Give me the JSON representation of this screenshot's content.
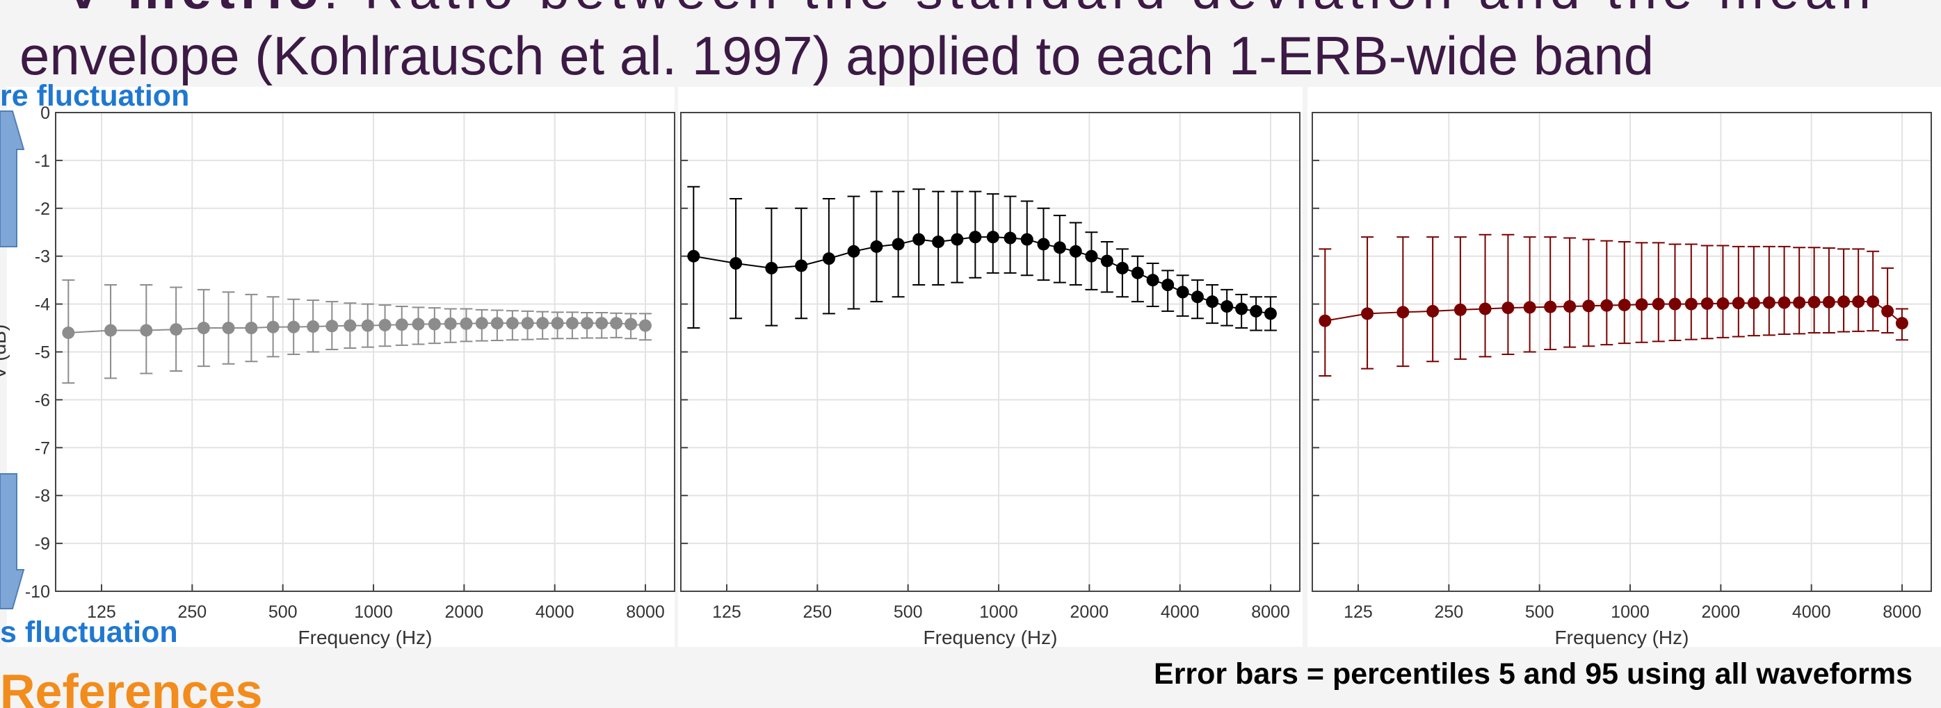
{
  "slide": {
    "bullet": "-",
    "bullet_term": "V metric",
    "bullet_text": ": Ratio between the standard deviation and the mean",
    "line2": "envelope (Kohlrausch et al. 1997) applied to each 1-ERB-wide band",
    "more": "re fluctuation",
    "less": "s fluctuation",
    "references": "References",
    "note": "Error bars = percentiles 5 and 95 using all waveforms"
  },
  "chart_data": [
    {
      "type": "line",
      "xscale": "log",
      "grid": true,
      "color": "#8c8c8c",
      "show_ytick_labels": true,
      "ylabel": "V (dB)",
      "xlabel": "Frequency (Hz)",
      "xlim": [
        88,
        10000
      ],
      "ylim": [
        -10,
        0
      ],
      "xticks": [
        125,
        250,
        500,
        1000,
        2000,
        4000,
        8000
      ],
      "yticks": [
        0,
        -1,
        -2,
        -3,
        -4,
        -5,
        -6,
        -7,
        -8,
        -9,
        -10
      ],
      "x": [
        97,
        134,
        176,
        221,
        273,
        330,
        393,
        464,
        543,
        630,
        728,
        836,
        957,
        1092,
        1242,
        1409,
        1595,
        1802,
        2033,
        2290,
        2575,
        2894,
        3249,
        3644,
        4084,
        4574,
        5119,
        5727,
        6403,
        7157,
        7995
      ],
      "values": [
        -4.6,
        -4.55,
        -4.55,
        -4.53,
        -4.5,
        -4.5,
        -4.5,
        -4.48,
        -4.48,
        -4.47,
        -4.46,
        -4.45,
        -4.45,
        -4.44,
        -4.43,
        -4.42,
        -4.42,
        -4.41,
        -4.41,
        -4.4,
        -4.4,
        -4.4,
        -4.4,
        -4.4,
        -4.4,
        -4.4,
        -4.4,
        -4.4,
        -4.4,
        -4.42,
        -4.45
      ],
      "upper": [
        -3.5,
        -3.6,
        -3.6,
        -3.65,
        -3.7,
        -3.75,
        -3.8,
        -3.85,
        -3.9,
        -3.92,
        -3.95,
        -3.98,
        -4.0,
        -4.02,
        -4.05,
        -4.07,
        -4.08,
        -4.1,
        -4.1,
        -4.12,
        -4.13,
        -4.14,
        -4.15,
        -4.16,
        -4.17,
        -4.17,
        -4.18,
        -4.18,
        -4.19,
        -4.2,
        -4.2
      ],
      "lower": [
        -5.65,
        -5.55,
        -5.45,
        -5.4,
        -5.3,
        -5.25,
        -5.2,
        -5.1,
        -5.05,
        -5.0,
        -4.95,
        -4.92,
        -4.9,
        -4.88,
        -4.86,
        -4.84,
        -4.82,
        -4.8,
        -4.78,
        -4.77,
        -4.76,
        -4.75,
        -4.74,
        -4.73,
        -4.72,
        -4.72,
        -4.71,
        -4.71,
        -4.7,
        -4.72,
        -4.75
      ]
    },
    {
      "type": "line",
      "xscale": "log",
      "grid": true,
      "color": "#000000",
      "show_ytick_labels": false,
      "xlabel": "Frequency (Hz)",
      "xlim": [
        88,
        10000
      ],
      "ylim": [
        -10,
        0
      ],
      "xticks": [
        125,
        250,
        500,
        1000,
        2000,
        4000,
        8000
      ],
      "yticks": [
        0,
        -1,
        -2,
        -3,
        -4,
        -5,
        -6,
        -7,
        -8,
        -9,
        -10
      ],
      "x": [
        97,
        134,
        176,
        221,
        273,
        330,
        393,
        464,
        543,
        630,
        728,
        836,
        957,
        1092,
        1242,
        1409,
        1595,
        1802,
        2033,
        2290,
        2575,
        2894,
        3249,
        3644,
        4084,
        4574,
        5119,
        5727,
        6403,
        7157,
        7995
      ],
      "values": [
        -3.0,
        -3.15,
        -3.25,
        -3.2,
        -3.05,
        -2.9,
        -2.8,
        -2.75,
        -2.65,
        -2.7,
        -2.65,
        -2.6,
        -2.6,
        -2.62,
        -2.65,
        -2.75,
        -2.82,
        -2.9,
        -3.0,
        -3.1,
        -3.25,
        -3.35,
        -3.5,
        -3.6,
        -3.75,
        -3.85,
        -3.95,
        -4.05,
        -4.1,
        -4.15,
        -4.2
      ],
      "upper": [
        -1.55,
        -1.8,
        -2.0,
        -2.0,
        -1.8,
        -1.75,
        -1.65,
        -1.65,
        -1.6,
        -1.65,
        -1.65,
        -1.65,
        -1.7,
        -1.75,
        -1.85,
        -2.0,
        -2.15,
        -2.3,
        -2.5,
        -2.7,
        -2.85,
        -3.0,
        -3.15,
        -3.3,
        -3.4,
        -3.5,
        -3.6,
        -3.7,
        -3.8,
        -3.85,
        -3.85
      ],
      "lower": [
        -4.5,
        -4.3,
        -4.45,
        -4.3,
        -4.2,
        -4.1,
        -3.95,
        -3.85,
        -3.6,
        -3.6,
        -3.55,
        -3.45,
        -3.35,
        -3.35,
        -3.4,
        -3.5,
        -3.55,
        -3.6,
        -3.7,
        -3.75,
        -3.85,
        -3.95,
        -4.05,
        -4.15,
        -4.25,
        -4.3,
        -4.4,
        -4.45,
        -4.5,
        -4.55,
        -4.55
      ]
    },
    {
      "type": "line",
      "xscale": "log",
      "grid": true,
      "color": "#7a0000",
      "show_ytick_labels": false,
      "xlabel": "Frequency (Hz)",
      "xlim": [
        88,
        10000
      ],
      "ylim": [
        -10,
        0
      ],
      "xticks": [
        125,
        250,
        500,
        1000,
        2000,
        4000,
        8000
      ],
      "yticks": [
        0,
        -1,
        -2,
        -3,
        -4,
        -5,
        -6,
        -7,
        -8,
        -9,
        -10
      ],
      "x": [
        97,
        134,
        176,
        221,
        273,
        330,
        393,
        464,
        543,
        630,
        728,
        836,
        957,
        1092,
        1242,
        1409,
        1595,
        1802,
        2033,
        2290,
        2575,
        2894,
        3249,
        3644,
        4084,
        4574,
        5119,
        5727,
        6403,
        7157,
        7995
      ],
      "values": [
        -4.35,
        -4.2,
        -4.17,
        -4.15,
        -4.12,
        -4.1,
        -4.08,
        -4.07,
        -4.06,
        -4.05,
        -4.04,
        -4.03,
        -4.02,
        -4.01,
        -4.0,
        -4.0,
        -4.0,
        -3.99,
        -3.99,
        -3.98,
        -3.98,
        -3.97,
        -3.97,
        -3.97,
        -3.96,
        -3.96,
        -3.95,
        -3.95,
        -3.95,
        -4.15,
        -4.4
      ],
      "upper": [
        -2.85,
        -2.6,
        -2.6,
        -2.6,
        -2.6,
        -2.55,
        -2.55,
        -2.6,
        -2.6,
        -2.62,
        -2.65,
        -2.68,
        -2.7,
        -2.72,
        -2.72,
        -2.75,
        -2.75,
        -2.78,
        -2.78,
        -2.8,
        -2.8,
        -2.8,
        -2.8,
        -2.82,
        -2.82,
        -2.83,
        -2.85,
        -2.85,
        -2.9,
        -3.25,
        -4.1
      ],
      "lower": [
        -5.5,
        -5.35,
        -5.3,
        -5.2,
        -5.15,
        -5.1,
        -5.05,
        -5.0,
        -4.95,
        -4.9,
        -4.88,
        -4.85,
        -4.82,
        -4.8,
        -4.78,
        -4.76,
        -4.74,
        -4.72,
        -4.7,
        -4.68,
        -4.66,
        -4.65,
        -4.63,
        -4.62,
        -4.6,
        -4.6,
        -4.58,
        -4.57,
        -4.56,
        -4.6,
        -4.75
      ]
    }
  ]
}
